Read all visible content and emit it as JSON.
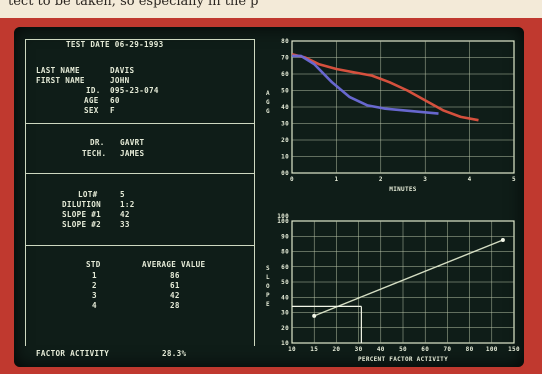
{
  "background_text": "tect to be taken, so especially in the p",
  "header": {
    "test_date": "TEST DATE 06-29-1993"
  },
  "patient": {
    "last_name_label": "LAST  NAME",
    "last_name": "DAVIS",
    "first_name_label": "FIRST NAME",
    "first_name": "JOHN",
    "id_label": "ID.",
    "id": "095-23-074",
    "age_label": "AGE",
    "age": "60",
    "sex_label": "SEX",
    "sex": "F"
  },
  "staff": {
    "dr_label": "DR.",
    "dr": "GAVRT",
    "tech_label": "TECH.",
    "tech": "JAMES"
  },
  "test": {
    "lot_label": "LOT#",
    "lot": "5",
    "dilution_label": "DILUTION",
    "dilution": "1:2",
    "slope1_label": "SLOPE #1",
    "slope1": "42",
    "slope2_label": "SLOPE #2",
    "slope2": "33"
  },
  "table": {
    "headers": [
      "STD",
      "AVERAGE VALUE"
    ],
    "rows": [
      [
        "1",
        "86"
      ],
      [
        "2",
        "61"
      ],
      [
        "3",
        "42"
      ],
      [
        "4",
        "28"
      ]
    ]
  },
  "factor": {
    "label": "FACTOR ACTIVITY",
    "value": "28.3%"
  },
  "colors": {
    "red_trace": "#e0533f",
    "blue_trace": "#6d6bd8",
    "line": "#dfe8cc"
  },
  "chart_data": [
    {
      "type": "line",
      "xlabel": "MINUTES",
      "ylabel": "AGG",
      "xlim": [
        0,
        5
      ],
      "ylim": [
        0,
        80
      ],
      "x_ticks": [
        "0",
        "1",
        "2",
        "3",
        "4",
        "5"
      ],
      "y_ticks": [
        "80",
        "70",
        "60",
        "50",
        "40",
        "30",
        "20",
        "10",
        "00"
      ],
      "grid": true,
      "series": [
        {
          "color": "#e0533f",
          "x": [
            0,
            0.3,
            0.6,
            1.0,
            1.4,
            1.8,
            2.2,
            2.6,
            3.0,
            3.4,
            3.8,
            4.2
          ],
          "y": [
            72,
            70,
            66,
            63,
            61,
            59,
            55,
            50,
            44,
            38,
            34,
            32
          ]
        },
        {
          "color": "#6d6bd8",
          "x": [
            0,
            0.2,
            0.5,
            0.9,
            1.3,
            1.7,
            2.1,
            2.5,
            2.9,
            3.3
          ],
          "y": [
            71,
            71,
            66,
            55,
            46,
            41,
            39,
            38,
            37,
            36
          ]
        }
      ]
    },
    {
      "type": "line",
      "xlabel": "PERCENT FACTOR ACTIVITY",
      "ylabel": "SLOPE",
      "title": "100",
      "xlim": [
        0,
        8
      ],
      "ylim": [
        10,
        100
      ],
      "x_ticks": [
        "10",
        "15",
        "20",
        "30",
        "40",
        "50",
        "60",
        "70",
        "80",
        "100",
        "150"
      ],
      "y_ticks": [
        "100",
        "90",
        "80",
        "60",
        "50",
        "40",
        "30",
        "20",
        "10"
      ],
      "grid": true,
      "series": [
        {
          "color": "#dfe8cc",
          "x": [
            0.8,
            7.6
          ],
          "y": [
            30,
            86
          ]
        }
      ],
      "points": [
        {
          "x": 0.8,
          "y": 30
        },
        {
          "x": 7.6,
          "y": 86
        }
      ],
      "reference": {
        "x": 2.5,
        "y": 37
      }
    }
  ]
}
